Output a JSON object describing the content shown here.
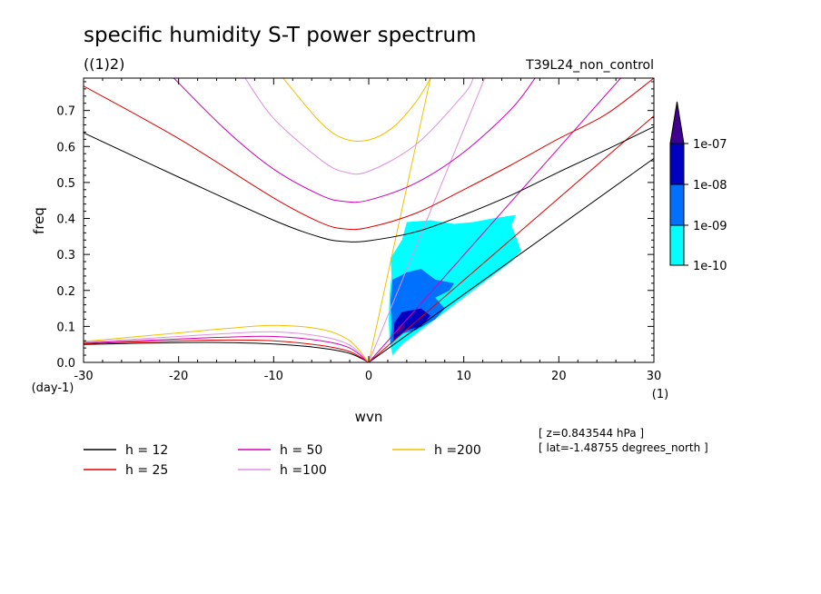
{
  "chart_data": {
    "type": "line",
    "title": "specific humidity S-T power spectrum",
    "subtitle": "((1)2)",
    "run_label": "T39L24_non_control",
    "xlabel": "wvn",
    "ylabel": "freq",
    "x_unit": "(1)",
    "y_unit": "(day-1)",
    "xlim": [
      -30,
      30
    ],
    "ylim": [
      0,
      0.79
    ],
    "xticks": [
      -30,
      -20,
      -10,
      0,
      10,
      20,
      30
    ],
    "xtick_labels": [
      "-30",
      "-20",
      "-10",
      "0",
      "10",
      "20",
      "30"
    ],
    "yticks": [
      0,
      0.1,
      0.2,
      0.3,
      0.4,
      0.5,
      0.6,
      0.7
    ],
    "ytick_labels": [
      "0.0",
      "0.1",
      "0.2",
      "0.3",
      "0.4",
      "0.5",
      "0.6",
      "0.7"
    ],
    "annotations": [
      "[ z=0.843544 hPa ]",
      "[ lat=-1.48755 degrees_north ]"
    ],
    "series": [
      {
        "name": "h = 12",
        "color": "#000000"
      },
      {
        "name": "h = 25",
        "color": "#e00000"
      },
      {
        "name": "h = 50",
        "color": "#d000b8"
      },
      {
        "name": "h =100",
        "color": "#e090e0"
      },
      {
        "name": "h =200",
        "color": "#f0c000"
      }
    ],
    "kelvin_curves": [
      {
        "series": 0,
        "x": [
          0,
          30
        ],
        "y": [
          0,
          0.567
        ]
      },
      {
        "series": 1,
        "x": [
          0,
          30
        ],
        "y": [
          0,
          0.685
        ]
      },
      {
        "series": 2,
        "x": [
          0,
          26.5
        ],
        "y": [
          0,
          0.79
        ]
      },
      {
        "series": 3,
        "x": [
          0,
          12.2
        ],
        "y": [
          0,
          0.79
        ]
      },
      {
        "series": 4,
        "x": [
          0,
          6.5
        ],
        "y": [
          0,
          0.79
        ]
      }
    ],
    "igw_curves": [
      {
        "series": 0,
        "x": [
          -30,
          -20,
          -10,
          -5,
          -2.5,
          0,
          5,
          10,
          15,
          20,
          25,
          30
        ],
        "y": [
          0.638,
          0.515,
          0.395,
          0.347,
          0.336,
          0.338,
          0.363,
          0.41,
          0.465,
          0.529,
          0.591,
          0.655
        ]
      },
      {
        "series": 1,
        "x": [
          -30,
          -20,
          -10,
          -5,
          -2.5,
          0,
          5,
          10,
          15,
          20,
          25,
          30
        ],
        "y": [
          0.768,
          0.622,
          0.457,
          0.388,
          0.371,
          0.375,
          0.415,
          0.48,
          0.549,
          0.622,
          0.69,
          0.79
        ]
      },
      {
        "series": 2,
        "x": [
          -20.5,
          -15,
          -10,
          -5,
          -2.5,
          0,
          5,
          10,
          15,
          17.5
        ],
        "y": [
          0.79,
          0.645,
          0.537,
          0.464,
          0.447,
          0.451,
          0.499,
          0.584,
          0.704,
          0.79
        ]
      },
      {
        "series": 3,
        "x": [
          -13,
          -10,
          -5,
          -2.5,
          0,
          5,
          10,
          11
        ],
        "y": [
          0.79,
          0.678,
          0.562,
          0.529,
          0.531,
          0.606,
          0.745,
          0.79
        ]
      },
      {
        "series": 4,
        "x": [
          -9,
          -5,
          -2.5,
          0,
          2.5,
          5,
          6.5
        ],
        "y": [
          0.79,
          0.665,
          0.621,
          0.618,
          0.652,
          0.725,
          0.79
        ]
      }
    ],
    "rossby_curves": [
      {
        "series": 0,
        "x": [
          -30,
          -20,
          -15,
          -10,
          -5,
          -2,
          0
        ],
        "y": [
          0.05,
          0.055,
          0.055,
          0.051,
          0.04,
          0.025,
          0
        ]
      },
      {
        "series": 1,
        "x": [
          -30,
          -20,
          -15,
          -10,
          -5,
          -2,
          0
        ],
        "y": [
          0.052,
          0.06,
          0.062,
          0.06,
          0.047,
          0.03,
          0
        ]
      },
      {
        "series": 2,
        "x": [
          -30,
          -20,
          -15,
          -10,
          -5,
          -2,
          0
        ],
        "y": [
          0.054,
          0.065,
          0.07,
          0.072,
          0.06,
          0.04,
          0
        ]
      },
      {
        "series": 3,
        "x": [
          -30,
          -20,
          -15,
          -10,
          -5,
          -2,
          0
        ],
        "y": [
          0.056,
          0.072,
          0.08,
          0.085,
          0.072,
          0.048,
          0
        ]
      },
      {
        "series": 4,
        "x": [
          -30,
          -20,
          -15,
          -10,
          -5,
          -2,
          0
        ],
        "y": [
          0.058,
          0.082,
          0.094,
          0.103,
          0.092,
          0.06,
          0
        ]
      }
    ],
    "shading": {
      "levels": [
        "1e-10",
        "1e-09",
        "1e-08",
        "1e-07"
      ],
      "colors": [
        "#00ffff",
        "#0070ff",
        "#0000c0",
        "#400090"
      ],
      "regions": [
        {
          "level": 0,
          "points": [
            [
              2.5,
              0.02
            ],
            [
              3.5,
              0.05
            ],
            [
              5,
              0.08
            ],
            [
              7,
              0.12
            ],
            [
              9,
              0.16
            ],
            [
              11,
              0.2
            ],
            [
              13,
              0.24
            ],
            [
              15,
              0.28
            ],
            [
              16,
              0.31
            ],
            [
              15.5,
              0.35
            ],
            [
              15,
              0.38
            ],
            [
              15.5,
              0.41
            ],
            [
              13,
              0.4
            ],
            [
              11,
              0.39
            ],
            [
              9,
              0.385
            ],
            [
              6.5,
              0.395
            ],
            [
              4,
              0.39
            ],
            [
              3.5,
              0.34
            ],
            [
              2.3,
              0.29
            ],
            [
              2.4,
              0.24
            ],
            [
              2.2,
              0.19
            ],
            [
              2.1,
              0.12
            ],
            [
              2.2,
              0.06
            ]
          ]
        },
        {
          "level": 1,
          "points": [
            [
              2.3,
              0.05
            ],
            [
              3.5,
              0.08
            ],
            [
              5,
              0.09
            ],
            [
              7,
              0.12
            ],
            [
              8,
              0.15
            ],
            [
              7,
              0.18
            ],
            [
              8.5,
              0.2
            ],
            [
              9,
              0.22
            ],
            [
              7,
              0.23
            ],
            [
              5.5,
              0.26
            ],
            [
              4,
              0.25
            ],
            [
              2.5,
              0.23
            ],
            [
              2.3,
              0.17
            ],
            [
              2.4,
              0.1
            ]
          ]
        },
        {
          "level": 2,
          "points": [
            [
              2.6,
              0.06
            ],
            [
              4,
              0.09
            ],
            [
              5.5,
              0.1
            ],
            [
              6.5,
              0.13
            ],
            [
              5.5,
              0.15
            ],
            [
              3.5,
              0.14
            ],
            [
              2.7,
              0.11
            ]
          ]
        },
        {
          "level": 3,
          "points": [
            [
              2.9,
              0.075
            ],
            [
              3.8,
              0.095
            ],
            [
              3.6,
              0.11
            ],
            [
              3.0,
              0.1
            ]
          ]
        }
      ]
    }
  }
}
